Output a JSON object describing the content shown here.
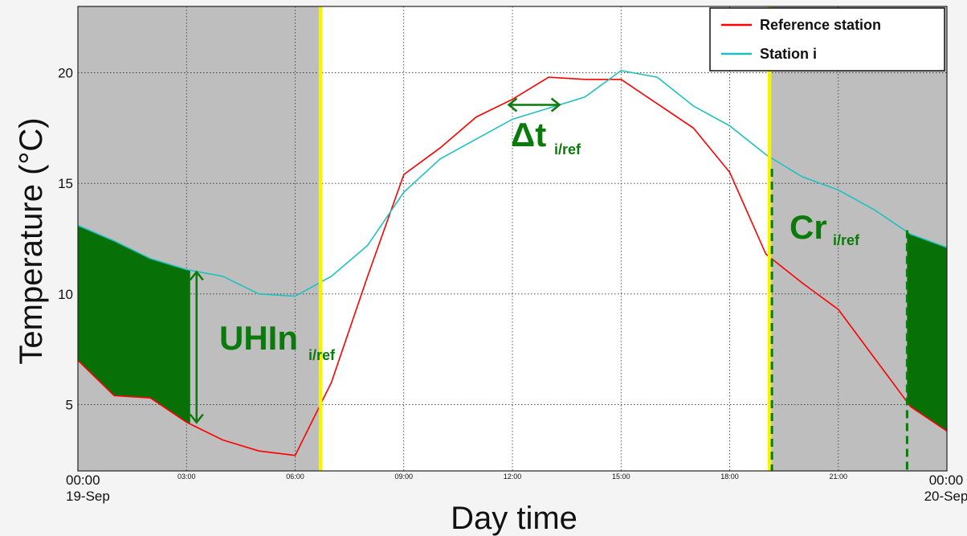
{
  "chart_data": {
    "type": "line",
    "xlabel": "Day time",
    "ylabel": "Temperature (°C)",
    "xlim": [
      0,
      24
    ],
    "ylim": [
      2,
      23
    ],
    "y_ticks": [
      5,
      10,
      15,
      20
    ],
    "x_ticks": [
      {
        "x": 0,
        "label": "00:00",
        "sub": "19-Sep",
        "major": true
      },
      {
        "x": 3,
        "label": "03:00"
      },
      {
        "x": 6,
        "label": "06:00"
      },
      {
        "x": 9,
        "label": "09:00"
      },
      {
        "x": 12,
        "label": "12:00"
      },
      {
        "x": 15,
        "label": "15:00"
      },
      {
        "x": 18,
        "label": "18:00"
      },
      {
        "x": 21,
        "label": "21:00"
      },
      {
        "x": 24,
        "label": "00:00",
        "sub": "20-Sep",
        "major": true
      }
    ],
    "grid": true,
    "legend_position": "top-right",
    "night_shading": [
      [
        0,
        6.7
      ],
      [
        19.1,
        24
      ]
    ],
    "sunrise_sunset_lines": [
      6.7,
      19.1
    ],
    "series": [
      {
        "name": "Reference station",
        "color": "#ff0000",
        "x": [
          0,
          1,
          2,
          3,
          4,
          5,
          6,
          7,
          8,
          9,
          10,
          11,
          12,
          13,
          14,
          15,
          16,
          17,
          18,
          19,
          20,
          21,
          22,
          23,
          24
        ],
        "y": [
          7.0,
          5.4,
          5.3,
          4.2,
          3.4,
          2.9,
          2.7,
          6.0,
          10.8,
          15.4,
          16.6,
          18.0,
          18.8,
          19.8,
          19.7,
          19.7,
          18.6,
          17.5,
          15.5,
          11.8,
          10.5,
          9.3,
          7.1,
          4.9,
          3.8
        ]
      },
      {
        "name": "Station i",
        "color": "#20c0c0",
        "x": [
          0,
          1,
          2,
          3,
          4,
          5,
          6,
          7,
          8,
          9,
          10,
          11,
          12,
          13,
          14,
          15,
          16,
          17,
          18,
          19,
          20,
          21,
          22,
          23,
          24
        ],
        "y": [
          13.1,
          12.4,
          11.6,
          11.1,
          10.8,
          10.0,
          9.9,
          10.8,
          12.2,
          14.6,
          16.1,
          17.0,
          17.9,
          18.4,
          18.9,
          20.1,
          19.8,
          18.5,
          17.6,
          16.3,
          15.3,
          14.7,
          13.8,
          12.7,
          12.1
        ]
      }
    ],
    "uhi_fill": [
      [
        0,
        3.1
      ],
      [
        22.9,
        24
      ]
    ],
    "annotations": {
      "uhi": {
        "main": "UHIn",
        "sub": "i/ref",
        "x": 3.1
      },
      "dt": {
        "main": "Δt",
        "sub": "i/ref",
        "x_from": 11.9,
        "x_to": 13.3,
        "y": 18.55
      },
      "cr": {
        "main": "Cr",
        "sub": "i/ref",
        "x": 19.1,
        "x2": 22.9
      }
    }
  },
  "colors": {
    "night": "#bebebe",
    "day": "#ffffff",
    "sun_line": "#f5f500",
    "annotation": "#0a7a0a",
    "uhi_fill": "#077007"
  }
}
